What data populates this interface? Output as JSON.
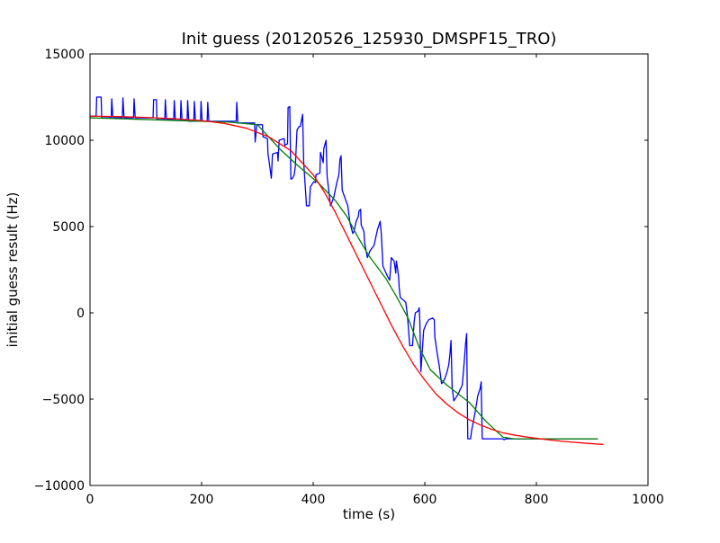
{
  "chart_data": {
    "type": "line",
    "title": "Init guess (20120526_125930_DMSPF15_TRO)",
    "xlabel": "time (s)",
    "ylabel": "initial guess result (Hz)",
    "xlim": [
      0,
      1000
    ],
    "ylim": [
      -10000,
      15000
    ],
    "xticks": [
      0,
      200,
      400,
      600,
      800,
      1000
    ],
    "xtick_labels": [
      "0",
      "200",
      "400",
      "600",
      "800",
      "1000"
    ],
    "yticks": [
      -10000,
      -5000,
      0,
      5000,
      10000,
      15000
    ],
    "ytick_labels": [
      "−10000",
      "−5000",
      "0",
      "5000",
      "10000",
      "15000"
    ],
    "grid": false,
    "legend": "none",
    "series": [
      {
        "color": "#0000ff",
        "points": [
          [
            0,
            11400
          ],
          [
            11,
            11400
          ],
          [
            12,
            12500
          ],
          [
            20,
            12500
          ],
          [
            21,
            11300
          ],
          [
            38,
            11300
          ],
          [
            39,
            12400
          ],
          [
            41,
            11300
          ],
          [
            58,
            11300
          ],
          [
            59,
            12450
          ],
          [
            61,
            11300
          ],
          [
            78,
            11300
          ],
          [
            79,
            12400
          ],
          [
            81,
            11300
          ],
          [
            113,
            11300
          ],
          [
            114,
            12350
          ],
          [
            119,
            12350
          ],
          [
            120,
            11200
          ],
          [
            134,
            11200
          ],
          [
            135,
            12350
          ],
          [
            137,
            11200
          ],
          [
            150,
            11200
          ],
          [
            151,
            12300
          ],
          [
            153,
            11150
          ],
          [
            162,
            11150
          ],
          [
            163,
            12300
          ],
          [
            165,
            11150
          ],
          [
            174,
            11150
          ],
          [
            175,
            12300
          ],
          [
            177,
            11100
          ],
          [
            186,
            11100
          ],
          [
            187,
            12250
          ],
          [
            189,
            11100
          ],
          [
            198,
            11100
          ],
          [
            199,
            12250
          ],
          [
            201,
            11100
          ],
          [
            210,
            11100
          ],
          [
            211,
            12200
          ],
          [
            213,
            11100
          ],
          [
            262,
            11100
          ],
          [
            263,
            12200
          ],
          [
            265,
            11000
          ],
          [
            295,
            11000
          ],
          [
            296,
            9900
          ],
          [
            299,
            10900
          ],
          [
            309,
            10900
          ],
          [
            310,
            10200
          ],
          [
            318,
            10100
          ],
          [
            319,
            9200
          ],
          [
            320,
            9000
          ],
          [
            325,
            7800
          ],
          [
            327,
            9200
          ],
          [
            336,
            9300
          ],
          [
            337,
            8800
          ],
          [
            339,
            10000
          ],
          [
            348,
            10100
          ],
          [
            349,
            9700
          ],
          [
            354,
            9800
          ],
          [
            355,
            11900
          ],
          [
            358,
            11950
          ],
          [
            360,
            7750
          ],
          [
            363,
            7800
          ],
          [
            366,
            8000
          ],
          [
            368,
            8500
          ],
          [
            371,
            10600
          ],
          [
            375,
            10800
          ],
          [
            377,
            10800
          ],
          [
            381,
            11500
          ],
          [
            383,
            8700
          ],
          [
            388,
            6200
          ],
          [
            393,
            6200
          ],
          [
            395,
            7300
          ],
          [
            401,
            7600
          ],
          [
            404,
            7550
          ],
          [
            405,
            8000
          ],
          [
            412,
            8100
          ],
          [
            413,
            9300
          ],
          [
            418,
            8700
          ],
          [
            419,
            9500
          ],
          [
            423,
            10000
          ],
          [
            425,
            7900
          ],
          [
            431,
            6200
          ],
          [
            437,
            6700
          ],
          [
            442,
            7500
          ],
          [
            446,
            8000
          ],
          [
            448,
            8900
          ],
          [
            450,
            9100
          ],
          [
            452,
            7100
          ],
          [
            462,
            6200
          ],
          [
            466,
            5200
          ],
          [
            471,
            4600
          ],
          [
            473,
            4700
          ],
          [
            477,
            5300
          ],
          [
            481,
            5600
          ],
          [
            482,
            5900
          ],
          [
            485,
            6000
          ],
          [
            486,
            5100
          ],
          [
            491,
            4700
          ],
          [
            492,
            4100
          ],
          [
            497,
            3200
          ],
          [
            502,
            3600
          ],
          [
            509,
            3900
          ],
          [
            515,
            4800
          ],
          [
            520,
            5300
          ],
          [
            522,
            4600
          ],
          [
            525,
            2700
          ],
          [
            532,
            2200
          ],
          [
            535,
            2000
          ],
          [
            537,
            1900
          ],
          [
            540,
            3200
          ],
          [
            545,
            3000
          ],
          [
            548,
            2300
          ],
          [
            549,
            3000
          ],
          [
            551,
            2600
          ],
          [
            553,
            2100
          ],
          [
            554,
            1500
          ],
          [
            556,
            900
          ],
          [
            563,
            700
          ],
          [
            566,
            600
          ],
          [
            569,
            -200
          ],
          [
            573,
            -1900
          ],
          [
            578,
            -1900
          ],
          [
            581,
            -500
          ],
          [
            583,
            0
          ],
          [
            588,
            100
          ],
          [
            590,
            300
          ],
          [
            591,
            -400
          ],
          [
            593,
            -3400
          ],
          [
            598,
            -1000
          ],
          [
            603,
            -600
          ],
          [
            607,
            -400
          ],
          [
            614,
            -300
          ],
          [
            617,
            -400
          ],
          [
            618,
            -1400
          ],
          [
            622,
            -2300
          ],
          [
            626,
            -3100
          ],
          [
            630,
            -4100
          ],
          [
            633,
            -4000
          ],
          [
            636,
            -3800
          ],
          [
            640,
            -3400
          ],
          [
            643,
            -3000
          ],
          [
            645,
            -2400
          ],
          [
            647,
            -1600
          ],
          [
            649,
            -4300
          ],
          [
            652,
            -5100
          ],
          [
            656,
            -4900
          ],
          [
            660,
            -4700
          ],
          [
            664,
            -4400
          ],
          [
            667,
            -4200
          ],
          [
            669,
            -3500
          ],
          [
            671,
            -2700
          ],
          [
            673,
            -1800
          ],
          [
            675,
            -1200
          ],
          [
            677,
            -7300
          ],
          [
            682,
            -7300
          ],
          [
            684,
            -6800
          ],
          [
            690,
            -5800
          ],
          [
            692,
            -5400
          ],
          [
            695,
            -4800
          ],
          [
            697,
            -4600
          ],
          [
            699,
            -4400
          ],
          [
            701,
            -4000
          ],
          [
            703,
            -7300
          ],
          [
            710,
            -7300
          ],
          [
            740,
            -7300
          ],
          [
            742,
            -7350
          ],
          [
            745,
            -7300
          ],
          [
            760,
            -7300
          ],
          [
            850,
            -7300
          ],
          [
            900,
            -7300
          ],
          [
            910,
            -7300
          ]
        ]
      },
      {
        "color": "#008000",
        "points": [
          [
            0,
            11300
          ],
          [
            150,
            11150
          ],
          [
            250,
            11050
          ],
          [
            300,
            10900
          ],
          [
            340,
            9500
          ],
          [
            370,
            8600
          ],
          [
            410,
            7500
          ],
          [
            440,
            6500
          ],
          [
            460,
            5600
          ],
          [
            480,
            4400
          ],
          [
            500,
            3300
          ],
          [
            530,
            2000
          ],
          [
            550,
            900
          ],
          [
            570,
            -300
          ],
          [
            590,
            -2000
          ],
          [
            610,
            -3300
          ],
          [
            640,
            -4200
          ],
          [
            680,
            -5200
          ],
          [
            710,
            -6300
          ],
          [
            740,
            -7200
          ],
          [
            760,
            -7300
          ],
          [
            800,
            -7300
          ],
          [
            900,
            -7300
          ],
          [
            910,
            -7300
          ]
        ]
      },
      {
        "color": "#ff0000",
        "points": [
          [
            0,
            11400
          ],
          [
            50,
            11370
          ],
          [
            100,
            11320
          ],
          [
            150,
            11250
          ],
          [
            200,
            11140
          ],
          [
            240,
            10980
          ],
          [
            280,
            10700
          ],
          [
            320,
            10200
          ],
          [
            360,
            9400
          ],
          [
            400,
            8000
          ],
          [
            420,
            7000
          ],
          [
            440,
            5800
          ],
          [
            460,
            4500
          ],
          [
            480,
            3200
          ],
          [
            500,
            1900
          ],
          [
            520,
            600
          ],
          [
            540,
            -700
          ],
          [
            560,
            -1900
          ],
          [
            580,
            -3000
          ],
          [
            600,
            -3900
          ],
          [
            620,
            -4700
          ],
          [
            640,
            -5300
          ],
          [
            660,
            -5800
          ],
          [
            680,
            -6200
          ],
          [
            700,
            -6500
          ],
          [
            720,
            -6750
          ],
          [
            740,
            -6950
          ],
          [
            760,
            -7080
          ],
          [
            780,
            -7180
          ],
          [
            800,
            -7270
          ],
          [
            820,
            -7350
          ],
          [
            840,
            -7420
          ],
          [
            860,
            -7480
          ],
          [
            880,
            -7530
          ],
          [
            900,
            -7580
          ],
          [
            920,
            -7620
          ]
        ]
      }
    ]
  }
}
